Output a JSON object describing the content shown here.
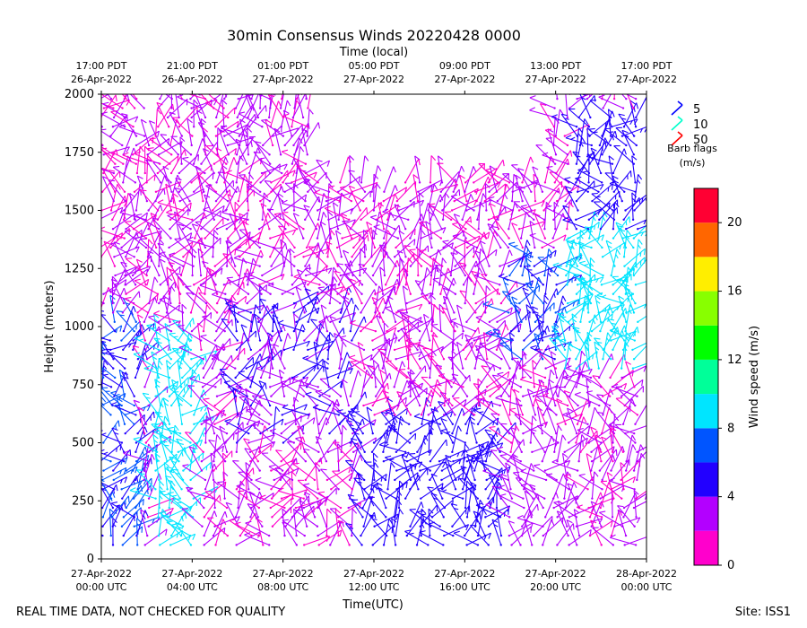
{
  "chart_data": {
    "type": "wind-barb profile",
    "title": "30min Consensus Winds 20220428 0000",
    "top_axis_label": "Time (local)",
    "top_ticks": [
      {
        "line1": "17:00 PDT",
        "line2": "26-Apr-2022"
      },
      {
        "line1": "21:00 PDT",
        "line2": "26-Apr-2022"
      },
      {
        "line1": "01:00 PDT",
        "line2": "27-Apr-2022"
      },
      {
        "line1": "05:00 PDT",
        "line2": "27-Apr-2022"
      },
      {
        "line1": "09:00 PDT",
        "line2": "27-Apr-2022"
      },
      {
        "line1": "13:00 PDT",
        "line2": "27-Apr-2022"
      },
      {
        "line1": "17:00 PDT",
        "line2": "27-Apr-2022"
      }
    ],
    "bottom_ticks": [
      {
        "line1": "27-Apr-2022",
        "line2": "00:00 UTC"
      },
      {
        "line1": "27-Apr-2022",
        "line2": "04:00 UTC"
      },
      {
        "line1": "27-Apr-2022",
        "line2": "08:00 UTC"
      },
      {
        "line1": "27-Apr-2022",
        "line2": "12:00 UTC"
      },
      {
        "line1": "27-Apr-2022",
        "line2": "16:00 UTC"
      },
      {
        "line1": "27-Apr-2022",
        "line2": "20:00 UTC"
      },
      {
        "line1": "28-Apr-2022",
        "line2": "00:00 UTC"
      }
    ],
    "xlabel": "Time(UTC)",
    "ylabel": "Height (meters)",
    "yticks": [
      "0",
      "250",
      "500",
      "750",
      "1000",
      "1250",
      "1500",
      "1750",
      "2000"
    ],
    "ylim": [
      0,
      2000
    ],
    "xlim_hours_utc": [
      0,
      24
    ],
    "legend": {
      "entries": [
        {
          "label": "5",
          "color": "#0000ff"
        },
        {
          "label": "10",
          "color": "#00ffcc"
        },
        {
          "label": "50",
          "color": "#ff0000"
        }
      ],
      "title_line1": "Barb flags",
      "title_line2": "(m/s)",
      "placement": "right"
    },
    "colorbar": {
      "label": "Wind speed (m/s)",
      "range": [
        0,
        22
      ],
      "tick_labels": [
        "0",
        "4",
        "8",
        "12",
        "16",
        "20"
      ],
      "tick_values": [
        0,
        4,
        8,
        12,
        16,
        20
      ],
      "colors": [
        "#ff00cc",
        "#b300ff",
        "#2200ff",
        "#0055ff",
        "#00e5ff",
        "#00ff99",
        "#00ff00",
        "#88ff00",
        "#ffee00",
        "#ff6600",
        "#ff0033"
      ]
    },
    "series_summary": [
      {
        "t_start": 0.0,
        "t_end": 1.5,
        "h_start": 0,
        "h_end": 1050,
        "speed": 6
      },
      {
        "t_start": 0.5,
        "t_end": 2.0,
        "h_start": 1050,
        "h_end": 2000,
        "speed": 2
      },
      {
        "t_start": 2.5,
        "t_end": 4.0,
        "h_start": 0,
        "h_end": 950,
        "speed": 9
      },
      {
        "t_start": 3.0,
        "t_end": 5.0,
        "h_start": 950,
        "h_end": 2000,
        "speed": 2
      },
      {
        "t_start": 6.0,
        "t_end": 11.0,
        "h_start": 500,
        "h_end": 1100,
        "speed": 4
      },
      {
        "t_start": 6.0,
        "t_end": 12.0,
        "h_start": 1100,
        "h_end": 1800,
        "speed": 2
      },
      {
        "t_start": 11.5,
        "t_end": 17.5,
        "h_start": 0,
        "h_end": 600,
        "speed": 5
      },
      {
        "t_start": 12.0,
        "t_end": 17.5,
        "h_start": 600,
        "h_end": 1550,
        "speed": 2
      },
      {
        "t_start": 18.0,
        "t_end": 21.0,
        "h_start": 0,
        "h_end": 450,
        "speed": 3
      },
      {
        "t_start": 18.0,
        "t_end": 20.5,
        "h_start": 850,
        "h_end": 1300,
        "speed": 6
      },
      {
        "t_start": 20.5,
        "t_end": 23.5,
        "h_start": 800,
        "h_end": 1400,
        "speed": 9
      },
      {
        "t_start": 21.0,
        "t_end": 23.5,
        "h_start": 1400,
        "h_end": 1900,
        "speed": 5
      },
      {
        "t_start": 21.0,
        "t_end": 23.5,
        "h_start": 0,
        "h_end": 800,
        "speed": 2
      }
    ]
  },
  "footer": {
    "left_note": "REAL TIME DATA, NOT CHECKED FOR QUALITY",
    "site": "Site: ISS1"
  }
}
